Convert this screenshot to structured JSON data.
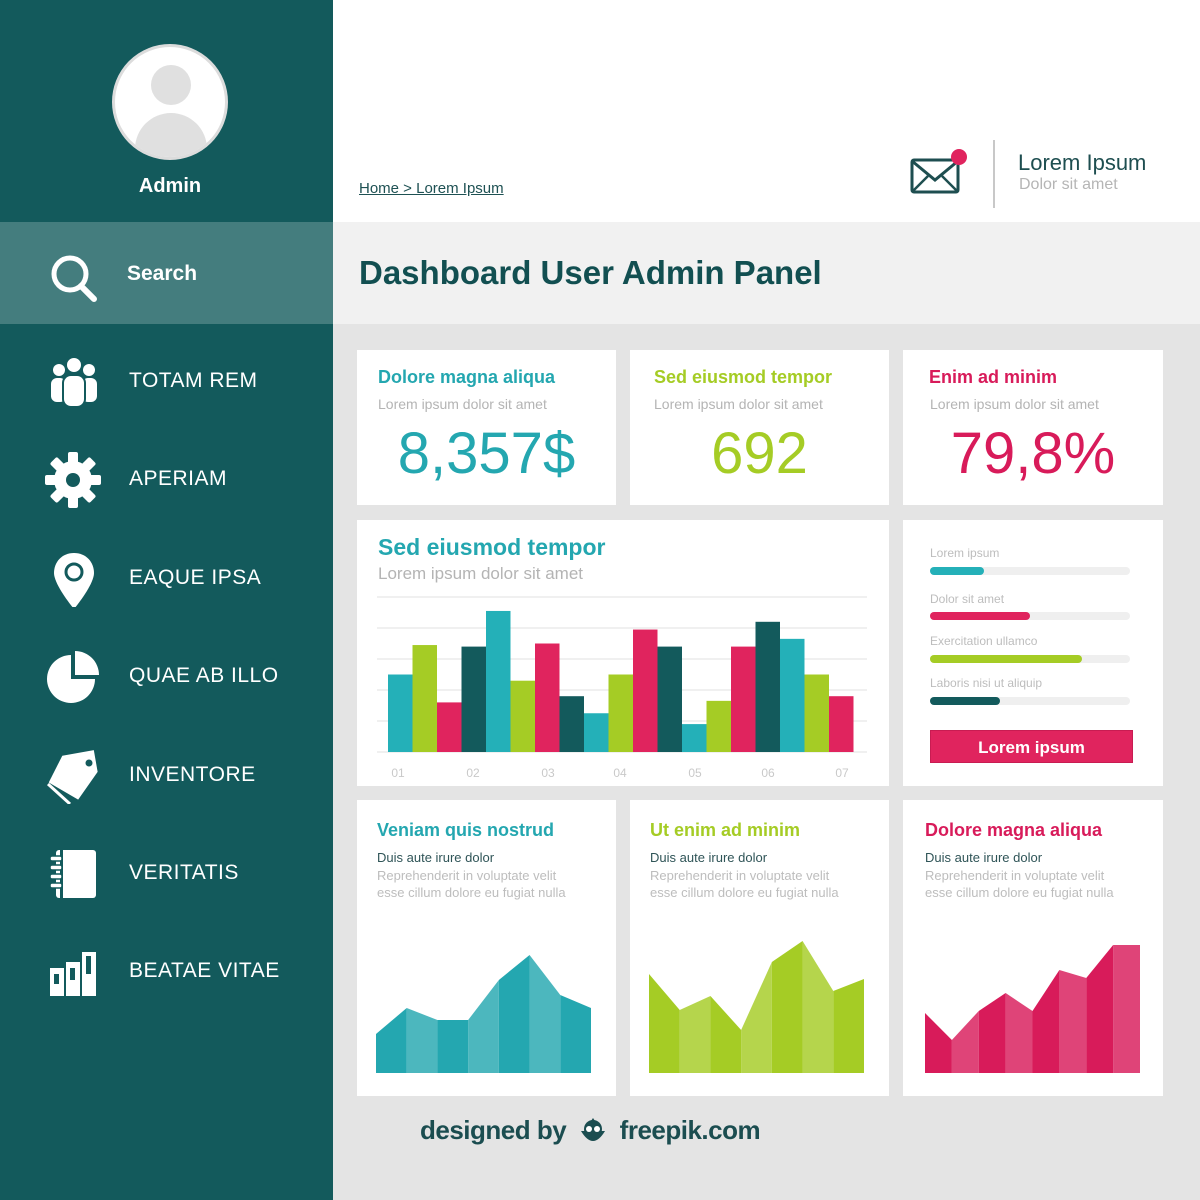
{
  "colors": {
    "sidebar": "#135a5c",
    "sidebar_active": "#447d7e",
    "teal": "#24b0b8",
    "green": "#a5cc25",
    "pink": "#e0245e",
    "dark_teal": "#135a5c",
    "title": "#124f51"
  },
  "sidebar": {
    "user": {
      "name": "Admin",
      "avatar_icon": "user-avatar-icon"
    },
    "search": {
      "label": "Search",
      "icon": "search-icon"
    },
    "items": [
      {
        "label": "TOTAM REM",
        "icon": "users-group-icon"
      },
      {
        "label": "APERIAM",
        "icon": "gear-icon"
      },
      {
        "label": "EAQUE IPSA",
        "icon": "map-pin-icon"
      },
      {
        "label": "QUAE AB ILLO",
        "icon": "pie-chart-icon"
      },
      {
        "label": "INVENTORE",
        "icon": "tag-icon"
      },
      {
        "label": "VERITATIS",
        "icon": "notebook-icon"
      },
      {
        "label": "BEATAE VITAE",
        "icon": "bar-chart-icon"
      }
    ]
  },
  "header": {
    "breadcrumb": "Home > Lorem Ipsum",
    "mail_icon": "mail-notification-icon",
    "user_name": "Lorem Ipsum",
    "user_subtitle": "Dolor sit amet"
  },
  "page": {
    "title": "Dashboard User Admin Panel"
  },
  "stats": [
    {
      "title": "Dolore magna aliqua",
      "subtitle": "Lorem ipsum dolor sit amet",
      "value": "8,357$",
      "color": "#24a7b0"
    },
    {
      "title": "Sed eiusmod tempor",
      "subtitle": "Lorem ipsum dolor sit amet",
      "value": "692",
      "color": "#a5cc25"
    },
    {
      "title": "Enim ad minim",
      "subtitle": "Lorem ipsum dolor sit amet",
      "value": "79,8%",
      "color": "#d81b5a"
    }
  ],
  "bar_panel": {
    "title": "Sed eiusmod tempor",
    "subtitle": "Lorem ipsum dolor sit amet"
  },
  "progress_panel": {
    "items": [
      {
        "label": "Lorem ipsum",
        "percent": 27,
        "color": "#24b0b8"
      },
      {
        "label": "Dolor sit amet",
        "percent": 50,
        "color": "#e0245e"
      },
      {
        "label": "Exercitation ullamco",
        "percent": 76,
        "color": "#a5cc25"
      },
      {
        "label": "Laboris nisi ut aliquip",
        "percent": 35,
        "color": "#135a5c"
      }
    ],
    "button_label": "Lorem ipsum"
  },
  "area_panels": [
    {
      "title": "Veniam quis nostrud",
      "lead": "Duis aute irure dolor",
      "body": "Reprehenderit in voluptate velit esse cillum dolore eu fugiat nulla",
      "color": "#24a7b0"
    },
    {
      "title": "Ut enim ad minim",
      "lead": "Duis aute irure dolor",
      "body": "Reprehenderit in voluptate velit esse cillum dolore eu fugiat nulla",
      "color": "#a5cc25"
    },
    {
      "title": "Dolore magna aliqua",
      "lead": "Duis aute irure dolor",
      "body": "Reprehenderit in voluptate velit esse cillum dolore eu fugiat nulla",
      "color": "#d81b5a"
    }
  ],
  "footer": {
    "credit_prefix": "designed by",
    "credit_brand": "freepik.com"
  },
  "chart_data": [
    {
      "type": "bar",
      "title": "Sed eiusmod tempor",
      "subtitle": "Lorem ipsum dolor sit amet",
      "categories": [
        "01",
        "02",
        "03",
        "04",
        "05",
        "06",
        "07"
      ],
      "xlabel": "",
      "ylabel": "",
      "ylim": [
        0,
        5
      ],
      "grid": true,
      "bar_colors_sequence": [
        "#24b0b8",
        "#a5cc25",
        "#e0245e",
        "#135a5c"
      ],
      "values": [
        2.5,
        3.45,
        1.6,
        3.4,
        4.55,
        2.3,
        3.5,
        1.8,
        1.25,
        2.5,
        3.95,
        3.4,
        0.9,
        1.65,
        3.4,
        4.2,
        3.65,
        2.5,
        1.8
      ],
      "colors": [
        "#24b0b8",
        "#a5cc25",
        "#e0245e",
        "#135a5c",
        "#24b0b8",
        "#a5cc25",
        "#e0245e",
        "#135a5c",
        "#24b0b8",
        "#a5cc25",
        "#e0245e",
        "#135a5c",
        "#24b0b8",
        "#a5cc25",
        "#e0245e",
        "#135a5c",
        "#24b0b8",
        "#a5cc25",
        "#e0245e"
      ]
    },
    {
      "type": "area",
      "title": "Veniam quis nostrud",
      "x": [
        1,
        2,
        3,
        4,
        5,
        6,
        7,
        8
      ],
      "values": [
        39,
        65,
        53,
        53,
        93,
        118,
        78,
        65
      ]
    },
    {
      "type": "area",
      "title": "Ut enim ad minim",
      "x": [
        1,
        2,
        3,
        4,
        5,
        6,
        7,
        8
      ],
      "values": [
        99,
        63,
        77,
        43,
        111,
        132,
        82,
        94
      ]
    },
    {
      "type": "area",
      "title": "Dolore magna aliqua",
      "x": [
        1,
        2,
        3,
        4,
        5,
        6,
        7,
        8,
        9
      ],
      "values": [
        60,
        33,
        62,
        80,
        62,
        103,
        95,
        128,
        0
      ]
    }
  ]
}
